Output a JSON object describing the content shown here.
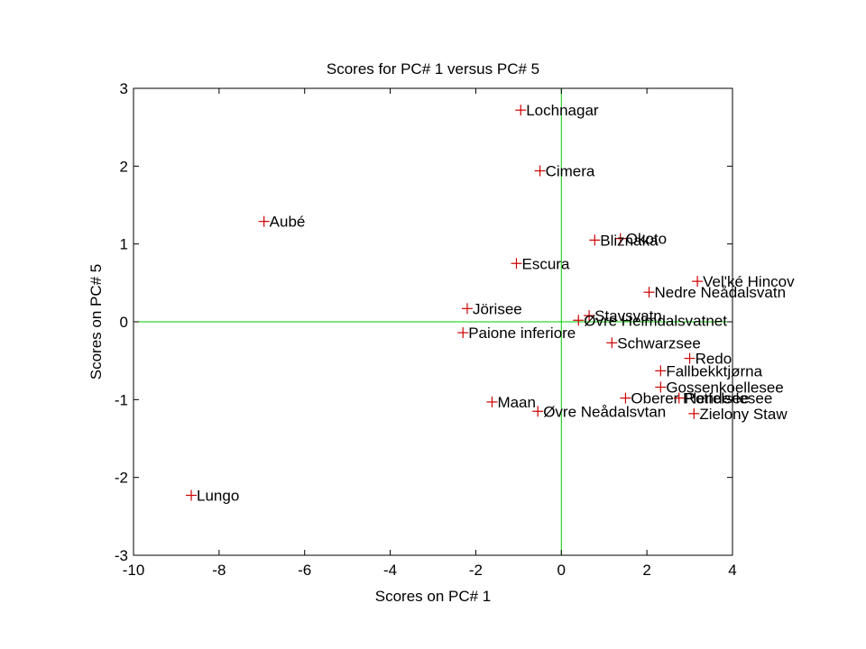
{
  "chart_data": {
    "type": "scatter",
    "title": "Scores for PC# 1 versus PC# 5",
    "xlabel": "Scores on PC# 1",
    "ylabel": "Scores on PC# 5",
    "xlim": [
      -10,
      4
    ],
    "ylim": [
      -3,
      3
    ],
    "xticks": [
      "-10",
      "-8",
      "-6",
      "-4",
      "-2",
      "0",
      "2",
      "4"
    ],
    "yticks": [
      "-3",
      "-2",
      "-1",
      "0",
      "1",
      "2",
      "3"
    ],
    "grid": false,
    "marker": "+",
    "marker_color": "#cc0000",
    "zero_line_color": "#00cc00",
    "points": [
      {
        "label": "Lochnagar",
        "x": -0.95,
        "y": 2.72
      },
      {
        "label": "Cimera",
        "x": -0.5,
        "y": 1.94
      },
      {
        "label": "Aubé",
        "x": -6.95,
        "y": 1.29
      },
      {
        "label": "Okoto",
        "x": 1.38,
        "y": 1.07
      },
      {
        "label": "Bliznaka",
        "x": 0.78,
        "y": 1.05
      },
      {
        "label": "Escura",
        "x": -1.05,
        "y": 0.75
      },
      {
        "label": "Vel'ké Hincov",
        "x": 3.18,
        "y": 0.52
      },
      {
        "label": "Nedre Neådalsvatn",
        "x": 2.05,
        "y": 0.38
      },
      {
        "label": "Jörisee",
        "x": -2.2,
        "y": 0.17
      },
      {
        "label": "Stavsvatn",
        "x": 0.65,
        "y": 0.08
      },
      {
        "label": "Øvre Heimdalsvatnet",
        "x": 0.4,
        "y": 0.02
      },
      {
        "label": "Paione inferiore",
        "x": -2.3,
        "y": -0.14
      },
      {
        "label": "Schwarzsee",
        "x": 1.18,
        "y": -0.27
      },
      {
        "label": "Redo",
        "x": 3.0,
        "y": -0.47
      },
      {
        "label": "Fallbekktjørna",
        "x": 2.32,
        "y": -0.63
      },
      {
        "label": "Gossenkoellesee",
        "x": 2.32,
        "y": -0.84
      },
      {
        "label": "Oberer Plenderlesee",
        "x": 1.5,
        "y": -0.98
      },
      {
        "label": "Rotfelsee",
        "x": 2.75,
        "y": -0.98
      },
      {
        "label": "Maan",
        "x": -1.62,
        "y": -1.03
      },
      {
        "label": "Øvre Neådalsvtan",
        "x": -0.55,
        "y": -1.15
      },
      {
        "label": "Zielony Staw",
        "x": 3.1,
        "y": -1.18
      },
      {
        "label": "Lungo",
        "x": -8.65,
        "y": -2.23
      }
    ]
  }
}
